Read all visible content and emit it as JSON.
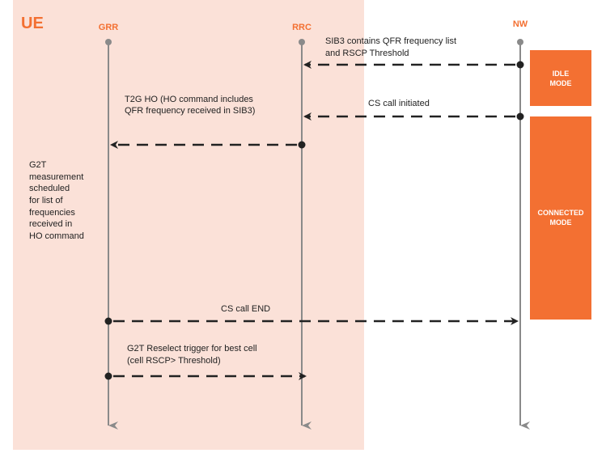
{
  "colors": {
    "ue_background": "#fbe1d8",
    "accent": "#f37032",
    "lifeline": "#8a8a8a",
    "arrow": "#222222"
  },
  "title": "UE",
  "lifelines": [
    {
      "id": "grr",
      "label": "GRR"
    },
    {
      "id": "rrc",
      "label": "RRC"
    },
    {
      "id": "nw",
      "label": "NW"
    }
  ],
  "modes": [
    {
      "lines": [
        "IDLE",
        "MODE"
      ]
    },
    {
      "lines": [
        "CONNECTED",
        "MODE"
      ]
    }
  ],
  "messages": [
    {
      "from": "NW",
      "to": "RRC",
      "lines": [
        "SIB3 contains QFR frequency list",
        "and RSCP Threshold"
      ]
    },
    {
      "from": "NW",
      "to": "RRC",
      "lines": [
        "CS call initiated"
      ]
    },
    {
      "from": "RRC",
      "to": "GRR",
      "lines": [
        "T2G  HO  (HO  command  includes",
        "QFR frequency received in SIB3)"
      ]
    },
    {
      "from": "GRR",
      "to": "NW",
      "lines": [
        "CS call END"
      ]
    },
    {
      "from": "GRR",
      "to": "RRC",
      "lines": [
        "G2T Reselect trigger for best cell",
        "(cell RSCP> Threshold)"
      ]
    }
  ],
  "note": {
    "lines": [
      "G2T",
      "measurement",
      "scheduled",
      "for list of",
      "frequencies",
      "received in",
      "HO command"
    ]
  }
}
